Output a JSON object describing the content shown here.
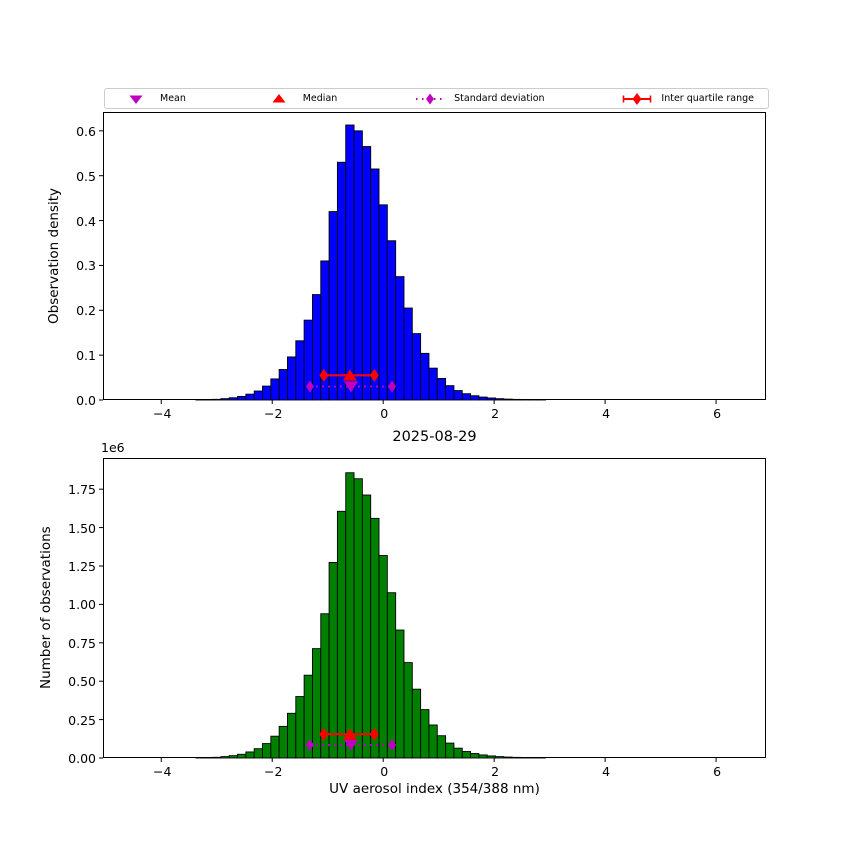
{
  "colors": {
    "histogram_top": "#0000ff",
    "histogram_bottom": "#008000",
    "bar_edge": "#000000",
    "red": "#ff0000",
    "magenta": "#bf00bf",
    "legend_border": "#cccccc",
    "background": "#ffffff"
  },
  "legend": {
    "items": [
      {
        "label": "Mean",
        "marker": "triangle-down-magenta"
      },
      {
        "label": "Median",
        "marker": "triangle-up-red"
      },
      {
        "label": "Standard deviation",
        "marker": "diamond-dotted-line-magenta"
      },
      {
        "label": "Inter quartile range",
        "marker": "diamond-solid-line-red"
      }
    ]
  },
  "chart_data": [
    {
      "type": "bar",
      "id": "density-histogram",
      "ylabel": "Observation density",
      "bar_color": "#0000ff",
      "bin_width": 0.15,
      "bin_centers": [
        -3.3,
        -3.15,
        -3.0,
        -2.85,
        -2.7,
        -2.55,
        -2.4,
        -2.25,
        -2.1,
        -1.95,
        -1.8,
        -1.65,
        -1.5,
        -1.35,
        -1.2,
        -1.05,
        -0.9,
        -0.75,
        -0.6,
        -0.45,
        -0.3,
        -0.15,
        0.0,
        0.15,
        0.3,
        0.45,
        0.6,
        0.75,
        0.9,
        1.05,
        1.2,
        1.35,
        1.5,
        1.65,
        1.8,
        1.95,
        2.1,
        2.25,
        2.4,
        2.55,
        2.7,
        2.85
      ],
      "values": [
        0.0004,
        0.0008,
        0.0015,
        0.003,
        0.005,
        0.008,
        0.013,
        0.02,
        0.031,
        0.047,
        0.068,
        0.096,
        0.132,
        0.178,
        0.235,
        0.31,
        0.42,
        0.53,
        0.613,
        0.6,
        0.565,
        0.515,
        0.435,
        0.355,
        0.275,
        0.205,
        0.148,
        0.104,
        0.071,
        0.048,
        0.032,
        0.021,
        0.014,
        0.0095,
        0.0065,
        0.0045,
        0.003,
        0.002,
        0.0014,
        0.001,
        0.0007,
        0.0005
      ],
      "xlim": [
        -5.05,
        6.9
      ],
      "ylim": [
        0,
        0.642
      ],
      "xticks": [
        -4,
        -2,
        0,
        2,
        4,
        6
      ],
      "xtick_labels": [
        "−4",
        "−2",
        "0",
        "2",
        "4",
        "6"
      ],
      "yticks": [
        0,
        0.1,
        0.2,
        0.3,
        0.4,
        0.5,
        0.6
      ],
      "ytick_labels": [
        "0.0",
        "0.1",
        "0.2",
        "0.3",
        "0.4",
        "0.5",
        "0.6"
      ],
      "grid": false,
      "stats": {
        "mean": -0.58,
        "median": -0.6,
        "std": 0.74,
        "std_low": -1.32,
        "std_high": 0.16,
        "q1": -1.07,
        "q3": -0.16,
        "iqr_marker_y": 0.055,
        "std_marker_y": 0.03
      }
    },
    {
      "type": "bar",
      "id": "counts-histogram",
      "title": "2025-08-29",
      "xlabel": "UV aerosol index (354/388 nm)",
      "ylabel": "Number of observations",
      "offset_text": "1e6",
      "bar_color": "#008000",
      "bin_width": 0.15,
      "bin_centers": [
        -3.3,
        -3.15,
        -3.0,
        -2.85,
        -2.7,
        -2.55,
        -2.4,
        -2.25,
        -2.1,
        -1.95,
        -1.8,
        -1.65,
        -1.5,
        -1.35,
        -1.2,
        -1.05,
        -0.9,
        -0.75,
        -0.6,
        -0.45,
        -0.3,
        -0.15,
        0.0,
        0.15,
        0.3,
        0.45,
        0.6,
        0.75,
        0.9,
        1.05,
        1.2,
        1.35,
        1.5,
        1.65,
        1.8,
        1.95,
        2.1,
        2.25,
        2.4,
        2.55,
        2.7,
        2.85
      ],
      "values": [
        1200,
        2400,
        4500,
        9100,
        15200,
        24200,
        39400,
        60600,
        93900,
        142000,
        206000,
        291000,
        400000,
        539000,
        712000,
        939000,
        1273000,
        1606000,
        1857000,
        1818000,
        1712000,
        1560000,
        1318000,
        1076000,
        833000,
        621000,
        448000,
        315000,
        215000,
        145000,
        97000,
        64000,
        42000,
        29000,
        20000,
        13600,
        9100,
        6100,
        4200,
        3000,
        2100,
        1500
      ],
      "xlim": [
        -5.05,
        6.9
      ],
      "ylim": [
        0,
        1953000
      ],
      "xticks": [
        -4,
        -2,
        0,
        2,
        4,
        6
      ],
      "xtick_labels": [
        "−4",
        "−2",
        "0",
        "2",
        "4",
        "6"
      ],
      "yticks": [
        0,
        250000,
        500000,
        750000,
        1000000,
        1250000,
        1500000,
        1750000
      ],
      "ytick_labels": [
        "0.00",
        "0.25",
        "0.50",
        "0.75",
        "1.00",
        "1.25",
        "1.50",
        "1.75"
      ],
      "grid": false,
      "stats": {
        "mean": -0.58,
        "median": -0.6,
        "std": 0.74,
        "std_low": -1.32,
        "std_high": 0.16,
        "q1": -1.07,
        "q3": -0.16,
        "iqr_marker_y": 155000,
        "std_marker_y": 85000
      }
    }
  ]
}
